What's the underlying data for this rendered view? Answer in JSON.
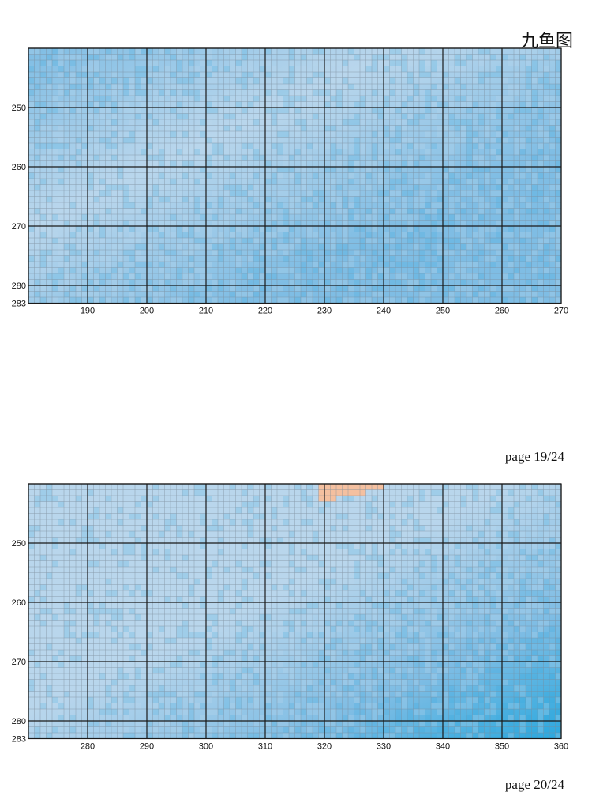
{
  "document": {
    "title": "九鱼图",
    "pages": [
      {
        "label": "page 19/24",
        "x_start": 180,
        "x_end": 270,
        "y_start": 240,
        "y_end": 283,
        "x_ticks": [
          "190",
          "200",
          "210",
          "220",
          "230",
          "240",
          "250",
          "260",
          "270"
        ],
        "y_ticks": [
          "250",
          "260",
          "270",
          "280",
          "283"
        ],
        "palette": "blue",
        "highlight": []
      },
      {
        "label": "page 20/24",
        "x_start": 270,
        "x_end": 360,
        "y_start": 240,
        "y_end": 283,
        "x_ticks": [
          "280",
          "290",
          "300",
          "310",
          "320",
          "330",
          "340",
          "350",
          "360"
        ],
        "y_ticks": [
          "250",
          "260",
          "270",
          "280",
          "283"
        ],
        "palette": "blue",
        "highlight": [
          {
            "x": 319,
            "y": 240,
            "w": 11,
            "h": 1,
            "color": "#f4c0a0"
          },
          {
            "x": 319,
            "y": 241,
            "w": 8,
            "h": 1,
            "color": "#f4c0a0"
          },
          {
            "x": 319,
            "y": 242,
            "w": 3,
            "h": 1,
            "color": "#f4c0a0"
          }
        ]
      }
    ],
    "colors": {
      "light_blue": "#b9d6ec",
      "mid_blue": "#7fbde4",
      "deep_blue": "#2ba8de",
      "grid_minor": "#7b8a99",
      "grid_major": "#1a1a1a",
      "peach": "#f4c0a0"
    }
  }
}
